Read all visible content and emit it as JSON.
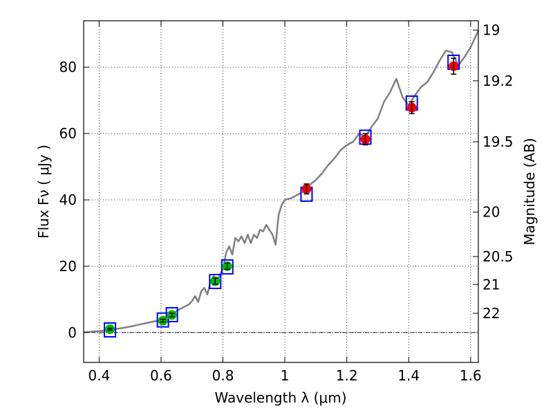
{
  "chart_data": {
    "type": "scatter",
    "title": "",
    "xlabel": "Wavelength  λ (μm)",
    "ylabel": "Flux  Fν  ( μJy )",
    "ylabel_right": "Magnitude (AB)",
    "xlim": [
      0.35,
      1.625
    ],
    "ylim": [
      -9,
      94
    ],
    "grid": true,
    "x_ticks": [
      0.4,
      0.6,
      0.8,
      1.0,
      1.2,
      1.4,
      1.6
    ],
    "x_tick_labels": [
      "0.4",
      "0.6",
      "0.8",
      "1",
      "1.2",
      "1.4",
      "1.6"
    ],
    "y_ticks": [
      0,
      20,
      40,
      60,
      80
    ],
    "y_tick_labels": [
      "0",
      "20",
      "40",
      "60",
      "80"
    ],
    "right_ticks": [
      {
        "label": "19",
        "flux": 91.2
      },
      {
        "label": "19.2",
        "flux": 75.9
      },
      {
        "label": "19.5",
        "flux": 57.5
      },
      {
        "label": "20",
        "flux": 36.3
      },
      {
        "label": "20.5",
        "flux": 22.9
      },
      {
        "label": "21",
        "flux": 14.5
      },
      {
        "label": "22",
        "flux": 5.8
      }
    ],
    "reference_line_y": 0,
    "colors": {
      "spectrum": "#808080",
      "model_box": "#0000ff",
      "optical_points": "#00bb00",
      "nir_points": "#ff0000",
      "error_bar": "#000000"
    },
    "series": [
      {
        "name": "model spectrum",
        "type": "line",
        "x": [
          0.35,
          0.38,
          0.41,
          0.44,
          0.47,
          0.5,
          0.53,
          0.56,
          0.59,
          0.61,
          0.63,
          0.65,
          0.67,
          0.69,
          0.7,
          0.71,
          0.72,
          0.73,
          0.74,
          0.75,
          0.76,
          0.77,
          0.78,
          0.79,
          0.8,
          0.81,
          0.82,
          0.83,
          0.84,
          0.85,
          0.86,
          0.87,
          0.88,
          0.89,
          0.9,
          0.91,
          0.92,
          0.93,
          0.94,
          0.95,
          0.96,
          0.97,
          0.98,
          0.99,
          1.0,
          1.02,
          1.04,
          1.06,
          1.08,
          1.1,
          1.12,
          1.14,
          1.16,
          1.18,
          1.2,
          1.22,
          1.24,
          1.26,
          1.28,
          1.3,
          1.32,
          1.34,
          1.36,
          1.38,
          1.4,
          1.42,
          1.44,
          1.46,
          1.48,
          1.5,
          1.52,
          1.54,
          1.56,
          1.58,
          1.6,
          1.625
        ],
        "y": [
          0.1,
          0.3,
          0.5,
          0.9,
          1.3,
          1.8,
          2.4,
          3.0,
          3.6,
          4.3,
          5.0,
          6.5,
          7.5,
          8.5,
          9.5,
          11.0,
          9.2,
          12.5,
          13.5,
          11.5,
          15.5,
          17.0,
          14.5,
          17.5,
          19.0,
          24.0,
          26.0,
          23.5,
          28.5,
          27.5,
          29.0,
          27.0,
          29.5,
          27.0,
          29.5,
          28.5,
          31.0,
          30.5,
          32.5,
          31.0,
          29.5,
          26.5,
          35.5,
          38.5,
          40.0,
          40.5,
          41.5,
          42.5,
          44.5,
          46.0,
          48.0,
          50.5,
          52.5,
          55.0,
          56.5,
          57.5,
          60.0,
          59.0,
          62.0,
          64.5,
          69.5,
          72.5,
          76.5,
          71.0,
          68.5,
          71.5,
          74.0,
          75.5,
          78.5,
          82.0,
          85.0,
          84.5,
          80.5,
          83.0,
          86.0,
          91.0
        ]
      },
      {
        "name": "model photometry",
        "type": "marker",
        "marker": "square",
        "x": [
          0.435,
          0.606,
          0.635,
          0.775,
          0.814,
          1.07,
          1.26,
          1.41,
          1.545
        ],
        "y": [
          0.8,
          3.8,
          5.4,
          15.4,
          19.8,
          41.7,
          58.9,
          69.2,
          81.5
        ]
      },
      {
        "name": "observed optical",
        "type": "marker",
        "marker": "circle",
        "x": [
          0.435,
          0.606,
          0.635,
          0.775,
          0.814
        ],
        "y": [
          1.0,
          3.6,
          5.3,
          15.5,
          20.0
        ],
        "yerr": [
          0.3,
          0.4,
          0.5,
          0.9,
          0.9
        ]
      },
      {
        "name": "observed near-IR",
        "type": "marker",
        "marker": "circle",
        "x": [
          1.07,
          1.26,
          1.41,
          1.545
        ],
        "y": [
          43.3,
          58.3,
          67.8,
          80.3
        ],
        "yerr": [
          1.5,
          1.7,
          1.8,
          2.4
        ]
      }
    ]
  }
}
